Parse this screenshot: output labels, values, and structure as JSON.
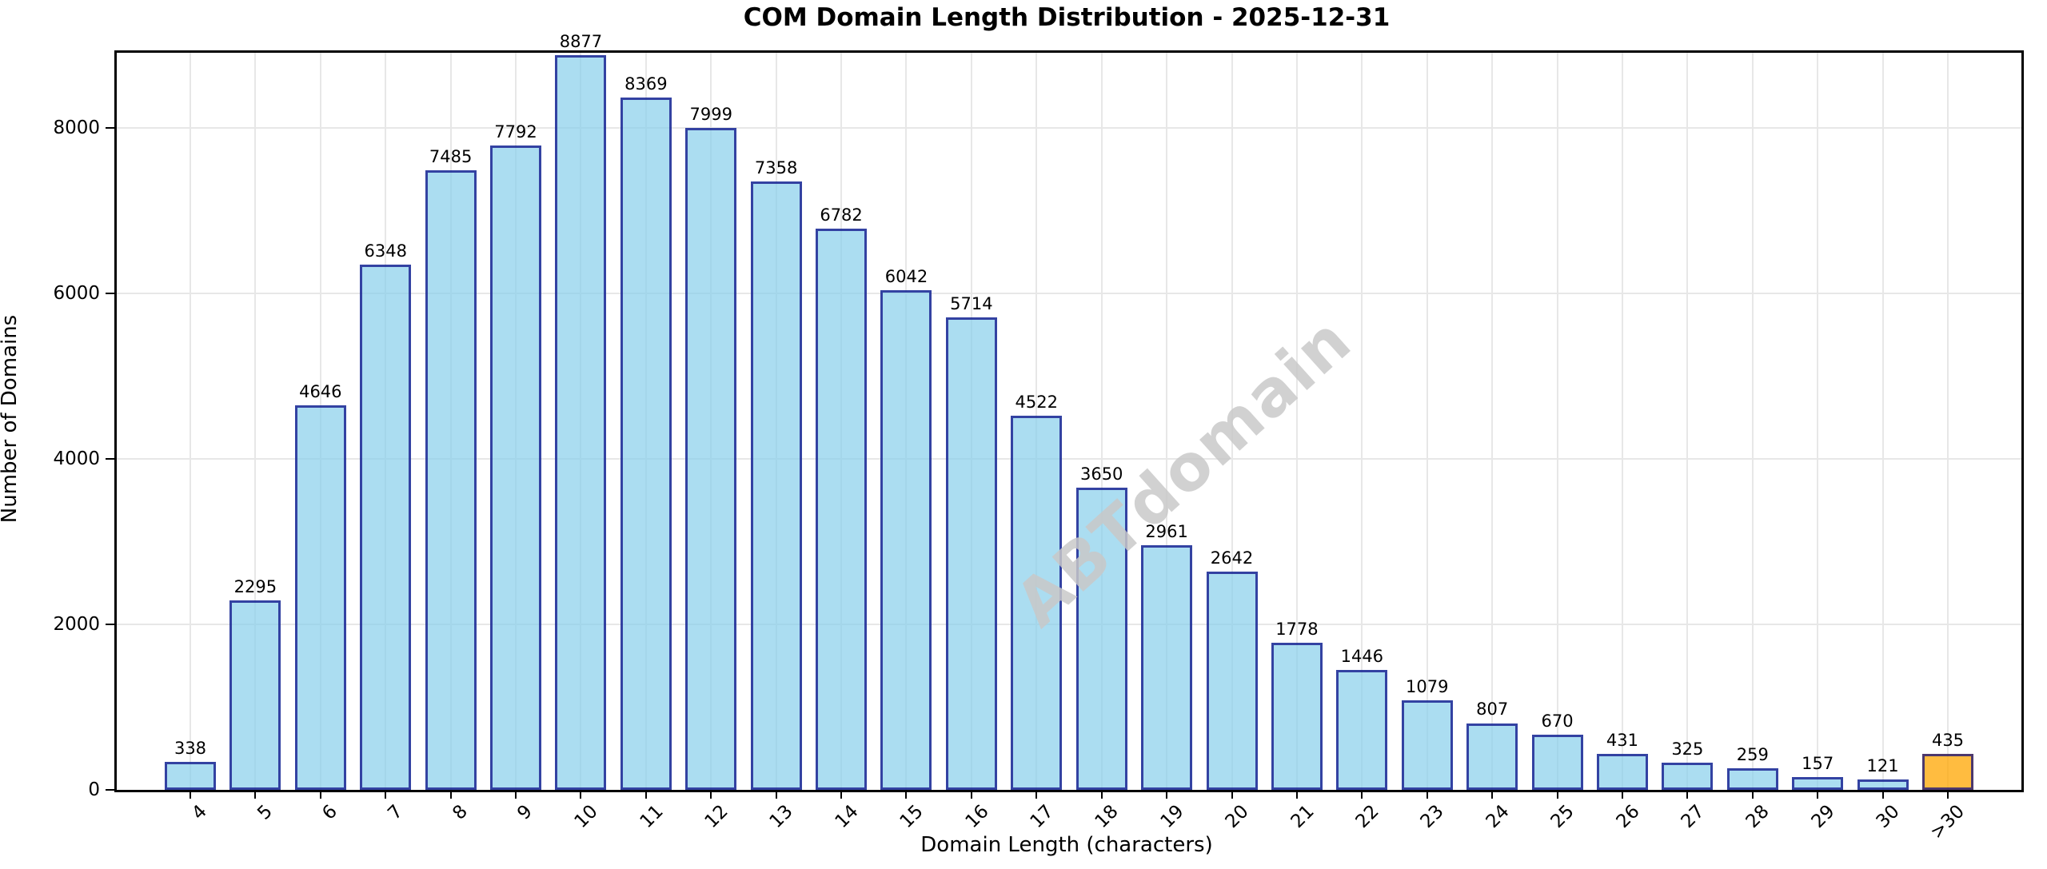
{
  "title": "COM Domain Length Distribution - 2025-12-31",
  "watermark_text": "ABTdomain",
  "chart_data": {
    "type": "bar",
    "title": "COM Domain Length Distribution - 2025-12-31",
    "xlabel": "Domain Length (characters)",
    "ylabel": "Number of Domains",
    "categories": [
      "4",
      "5",
      "6",
      "7",
      "8",
      "9",
      "10",
      "11",
      "12",
      "13",
      "14",
      "15",
      "16",
      "17",
      "18",
      "19",
      "20",
      "21",
      "22",
      "23",
      "24",
      "25",
      "26",
      "27",
      "28",
      "29",
      "30",
      ">30"
    ],
    "values": [
      338,
      2295,
      4646,
      6348,
      7485,
      7792,
      8877,
      8369,
      7999,
      7358,
      6782,
      6042,
      5714,
      4522,
      3650,
      2961,
      2642,
      1778,
      1446,
      1079,
      807,
      670,
      431,
      325,
      259,
      157,
      121,
      435
    ],
    "bar_value_labels": [
      "338",
      "2295",
      "4646",
      "6348",
      "7485",
      "7792",
      "8877",
      "8369",
      "7999",
      "7358",
      "6782",
      "6042",
      "5714",
      "4522",
      "3650",
      "2961",
      "2642",
      "1778",
      "1446",
      "1079",
      "807",
      "670",
      "431",
      "325",
      "259",
      "157",
      "121",
      "435"
    ],
    "highlight_category": ">30",
    "yticks": [
      0,
      2000,
      4000,
      6000,
      8000
    ],
    "ytick_labels": [
      "0",
      "2000",
      "4000",
      "6000",
      "8000"
    ],
    "ylim": [
      0,
      8910
    ],
    "grid": true,
    "legend": "none",
    "x_tick_rotation_deg": 45,
    "colors": {
      "bar_fill": "rgba(135,206,235,0.7)",
      "bar_edge": "rgba(0,0,128,0.7)",
      "highlight_fill": "rgba(255,165,0,0.75)",
      "gridline": "#e7e7e7",
      "spine": "#000000",
      "watermark": "#c9c9c9",
      "background": "#ffffff"
    }
  }
}
